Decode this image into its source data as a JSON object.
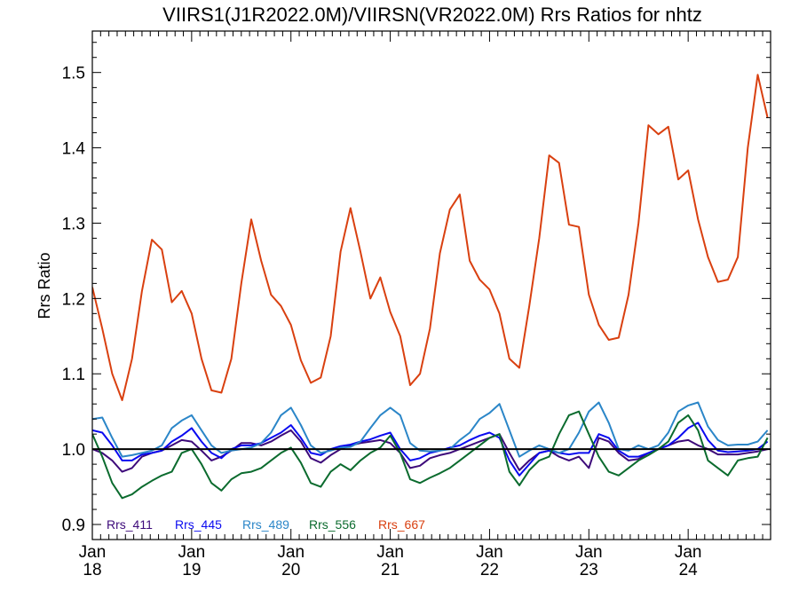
{
  "chart_data": {
    "type": "line",
    "title": "VIIRS1(J1R2022.0M)/VIIRSN(VR2022.0M)  Rrs Ratios for nhtz",
    "ylabel": "Rrs Ratio",
    "xlabel": "",
    "ylim": [
      0.88,
      1.555
    ],
    "xlim": [
      2018.0,
      2024.83
    ],
    "y_ticks": [
      "0.9",
      "1.0",
      "1.1",
      "1.2",
      "1.3",
      "1.4",
      "1.5"
    ],
    "y_tick_values": [
      0.9,
      1.0,
      1.1,
      1.2,
      1.3,
      1.4,
      1.5
    ],
    "x_ticks": [
      {
        "month": "Jan",
        "year": "18",
        "value": 2018
      },
      {
        "month": "Jan",
        "year": "19",
        "value": 2019
      },
      {
        "month": "Jan",
        "year": "20",
        "value": 2020
      },
      {
        "month": "Jan",
        "year": "21",
        "value": 2021
      },
      {
        "month": "Jan",
        "year": "22",
        "value": 2022
      },
      {
        "month": "Jan",
        "year": "23",
        "value": 2023
      },
      {
        "month": "Jan",
        "year": "24",
        "value": 2024
      }
    ],
    "reference_line": 1.0,
    "legend_position": "bottom-left",
    "series": [
      {
        "name": "Rrs_411",
        "color": "#3d0a7a",
        "x": [
          2018.0,
          2018.1,
          2018.2,
          2018.3,
          2018.4,
          2018.5,
          2018.6,
          2018.7,
          2018.8,
          2018.9,
          2019.0,
          2019.1,
          2019.2,
          2019.3,
          2019.4,
          2019.5,
          2019.6,
          2019.7,
          2019.8,
          2019.9,
          2020.0,
          2020.1,
          2020.2,
          2020.3,
          2020.4,
          2020.5,
          2020.6,
          2020.7,
          2020.8,
          2020.9,
          2021.0,
          2021.1,
          2021.2,
          2021.3,
          2021.4,
          2021.5,
          2021.6,
          2021.7,
          2021.8,
          2021.9,
          2022.0,
          2022.1,
          2022.2,
          2022.3,
          2022.4,
          2022.5,
          2022.6,
          2022.7,
          2022.8,
          2022.9,
          2023.0,
          2023.1,
          2023.2,
          2023.3,
          2023.4,
          2023.5,
          2023.6,
          2023.7,
          2023.8,
          2023.9,
          2024.0,
          2024.1,
          2024.2,
          2024.3,
          2024.4,
          2024.5,
          2024.6,
          2024.7,
          2024.8
        ],
        "y": [
          1.0,
          0.995,
          0.985,
          0.97,
          0.975,
          0.99,
          0.995,
          0.998,
          1.005,
          1.012,
          1.01,
          0.998,
          0.985,
          0.99,
          0.998,
          1.008,
          1.008,
          1.005,
          1.01,
          1.018,
          1.025,
          1.01,
          0.988,
          0.982,
          0.992,
          1.0,
          1.005,
          1.008,
          1.01,
          1.012,
          1.008,
          0.995,
          0.975,
          0.978,
          0.988,
          0.992,
          0.995,
          1.0,
          1.005,
          1.01,
          1.015,
          1.02,
          0.995,
          0.972,
          0.985,
          0.995,
          0.998,
          0.99,
          0.985,
          0.99,
          0.975,
          1.015,
          1.01,
          0.995,
          0.985,
          0.987,
          0.995,
          1.0,
          1.005,
          1.01,
          1.012,
          1.005,
          1.0,
          0.993,
          0.993,
          0.993,
          0.995,
          0.997,
          1.0
        ]
      },
      {
        "name": "Rrs_445",
        "color": "#0a0af0",
        "x": [
          2018.0,
          2018.1,
          2018.2,
          2018.3,
          2018.4,
          2018.5,
          2018.6,
          2018.7,
          2018.8,
          2018.9,
          2019.0,
          2019.1,
          2019.2,
          2019.3,
          2019.4,
          2019.5,
          2019.6,
          2019.7,
          2019.8,
          2019.9,
          2020.0,
          2020.1,
          2020.2,
          2020.3,
          2020.4,
          2020.5,
          2020.6,
          2020.7,
          2020.8,
          2020.9,
          2021.0,
          2021.1,
          2021.2,
          2021.3,
          2021.4,
          2021.5,
          2021.6,
          2021.7,
          2021.8,
          2021.9,
          2022.0,
          2022.1,
          2022.2,
          2022.3,
          2022.4,
          2022.5,
          2022.6,
          2022.7,
          2022.8,
          2022.9,
          2023.0,
          2023.1,
          2023.2,
          2023.3,
          2023.4,
          2023.5,
          2023.6,
          2023.7,
          2023.8,
          2023.9,
          2024.0,
          2024.1,
          2024.2,
          2024.3,
          2024.4,
          2024.5,
          2024.6,
          2024.7,
          2024.8
        ],
        "y": [
          1.025,
          1.022,
          1.005,
          0.985,
          0.985,
          0.993,
          0.995,
          0.998,
          1.01,
          1.018,
          1.028,
          1.01,
          0.995,
          0.988,
          1.0,
          1.005,
          1.005,
          1.008,
          1.015,
          1.022,
          1.032,
          1.015,
          0.995,
          0.992,
          1.0,
          1.004,
          1.006,
          1.01,
          1.013,
          1.018,
          1.022,
          1.0,
          0.985,
          0.988,
          0.995,
          0.998,
          1.002,
          1.005,
          1.012,
          1.018,
          1.022,
          1.015,
          0.985,
          0.965,
          0.98,
          0.995,
          0.998,
          0.995,
          0.993,
          0.995,
          0.995,
          1.02,
          1.015,
          0.998,
          0.99,
          0.99,
          0.995,
          1.0,
          1.005,
          1.015,
          1.028,
          1.035,
          1.012,
          0.998,
          0.996,
          0.997,
          0.998,
          1.0,
          1.01
        ]
      },
      {
        "name": "Rrs_489",
        "color": "#2b86c8",
        "x": [
          2018.0,
          2018.1,
          2018.2,
          2018.3,
          2018.4,
          2018.5,
          2018.6,
          2018.7,
          2018.8,
          2018.9,
          2019.0,
          2019.1,
          2019.2,
          2019.3,
          2019.4,
          2019.5,
          2019.6,
          2019.7,
          2019.8,
          2019.9,
          2020.0,
          2020.1,
          2020.2,
          2020.3,
          2020.4,
          2020.5,
          2020.6,
          2020.7,
          2020.8,
          2020.9,
          2021.0,
          2021.1,
          2021.2,
          2021.3,
          2021.4,
          2021.5,
          2021.6,
          2021.7,
          2021.8,
          2021.9,
          2022.0,
          2022.1,
          2022.2,
          2022.3,
          2022.4,
          2022.5,
          2022.6,
          2022.7,
          2022.8,
          2022.9,
          2023.0,
          2023.1,
          2023.2,
          2023.3,
          2023.4,
          2023.5,
          2023.6,
          2023.7,
          2023.8,
          2023.9,
          2024.0,
          2024.1,
          2024.2,
          2024.3,
          2024.4,
          2024.5,
          2024.6,
          2024.7,
          2024.8
        ],
        "y": [
          1.04,
          1.042,
          1.015,
          0.99,
          0.992,
          0.995,
          0.998,
          1.005,
          1.028,
          1.038,
          1.045,
          1.025,
          1.005,
          0.995,
          0.998,
          1.0,
          1.002,
          1.008,
          1.022,
          1.045,
          1.055,
          1.032,
          1.005,
          0.995,
          0.998,
          1.002,
          1.003,
          1.01,
          1.028,
          1.045,
          1.055,
          1.045,
          1.008,
          0.998,
          0.997,
          0.998,
          1.0,
          1.012,
          1.022,
          1.04,
          1.048,
          1.06,
          1.025,
          0.99,
          0.998,
          1.005,
          1.0,
          0.995,
          1.0,
          1.022,
          1.05,
          1.062,
          1.035,
          1.0,
          0.998,
          1.005,
          1.0,
          1.005,
          1.022,
          1.05,
          1.058,
          1.062,
          1.03,
          1.012,
          1.005,
          1.006,
          1.006,
          1.01,
          1.025
        ]
      },
      {
        "name": "Rrs_556",
        "color": "#0b6b2e",
        "x": [
          2018.0,
          2018.1,
          2018.2,
          2018.3,
          2018.4,
          2018.5,
          2018.6,
          2018.7,
          2018.8,
          2018.9,
          2019.0,
          2019.1,
          2019.2,
          2019.3,
          2019.4,
          2019.5,
          2019.6,
          2019.7,
          2019.8,
          2019.9,
          2020.0,
          2020.1,
          2020.2,
          2020.3,
          2020.4,
          2020.5,
          2020.6,
          2020.7,
          2020.8,
          2020.9,
          2021.0,
          2021.1,
          2021.2,
          2021.3,
          2021.4,
          2021.5,
          2021.6,
          2021.7,
          2021.8,
          2021.9,
          2022.0,
          2022.1,
          2022.2,
          2022.3,
          2022.4,
          2022.5,
          2022.6,
          2022.7,
          2022.8,
          2022.9,
          2023.0,
          2023.1,
          2023.2,
          2023.3,
          2023.4,
          2023.5,
          2023.6,
          2023.7,
          2023.8,
          2023.9,
          2024.0,
          2024.1,
          2024.2,
          2024.3,
          2024.4,
          2024.5,
          2024.6,
          2024.7,
          2024.8
        ],
        "y": [
          1.02,
          0.99,
          0.955,
          0.935,
          0.94,
          0.95,
          0.958,
          0.965,
          0.97,
          0.995,
          1.0,
          0.98,
          0.955,
          0.945,
          0.96,
          0.968,
          0.97,
          0.975,
          0.985,
          0.995,
          1.002,
          0.982,
          0.955,
          0.95,
          0.97,
          0.98,
          0.972,
          0.985,
          0.995,
          1.002,
          1.018,
          0.995,
          0.96,
          0.955,
          0.962,
          0.968,
          0.975,
          0.985,
          0.995,
          1.005,
          1.015,
          1.02,
          0.97,
          0.952,
          0.972,
          0.985,
          0.99,
          1.02,
          1.045,
          1.05,
          1.02,
          0.99,
          0.97,
          0.965,
          0.975,
          0.985,
          0.992,
          1.0,
          1.01,
          1.035,
          1.045,
          1.025,
          0.985,
          0.975,
          0.965,
          0.985,
          0.988,
          0.99,
          1.015
        ]
      },
      {
        "name": "Rrs_667",
        "color": "#d94010",
        "x": [
          2018.0,
          2018.1,
          2018.2,
          2018.3,
          2018.4,
          2018.5,
          2018.6,
          2018.7,
          2018.8,
          2018.9,
          2019.0,
          2019.1,
          2019.2,
          2019.3,
          2019.4,
          2019.5,
          2019.6,
          2019.7,
          2019.8,
          2019.9,
          2020.0,
          2020.1,
          2020.2,
          2020.3,
          2020.4,
          2020.5,
          2020.6,
          2020.7,
          2020.8,
          2020.9,
          2021.0,
          2021.1,
          2021.2,
          2021.3,
          2021.4,
          2021.5,
          2021.6,
          2021.7,
          2021.8,
          2021.9,
          2022.0,
          2022.1,
          2022.2,
          2022.3,
          2022.4,
          2022.5,
          2022.6,
          2022.7,
          2022.8,
          2022.9,
          2023.0,
          2023.1,
          2023.2,
          2023.3,
          2023.4,
          2023.5,
          2023.6,
          2023.7,
          2023.8,
          2023.9,
          2024.0,
          2024.1,
          2024.2,
          2024.3,
          2024.4,
          2024.5,
          2024.6,
          2024.7,
          2024.8
        ],
        "y": [
          1.215,
          1.16,
          1.1,
          1.065,
          1.12,
          1.21,
          1.278,
          1.265,
          1.195,
          1.21,
          1.18,
          1.12,
          1.078,
          1.075,
          1.12,
          1.22,
          1.305,
          1.25,
          1.205,
          1.19,
          1.165,
          1.118,
          1.088,
          1.095,
          1.15,
          1.262,
          1.32,
          1.262,
          1.2,
          1.228,
          1.182,
          1.15,
          1.085,
          1.1,
          1.16,
          1.26,
          1.318,
          1.338,
          1.25,
          1.225,
          1.212,
          1.18,
          1.12,
          1.108,
          1.19,
          1.28,
          1.39,
          1.38,
          1.298,
          1.295,
          1.205,
          1.165,
          1.145,
          1.148,
          1.205,
          1.3,
          1.43,
          1.418,
          1.428,
          1.358,
          1.37,
          1.305,
          1.255,
          1.222,
          1.225,
          1.255,
          1.4,
          1.497,
          1.44
        ]
      }
    ]
  }
}
